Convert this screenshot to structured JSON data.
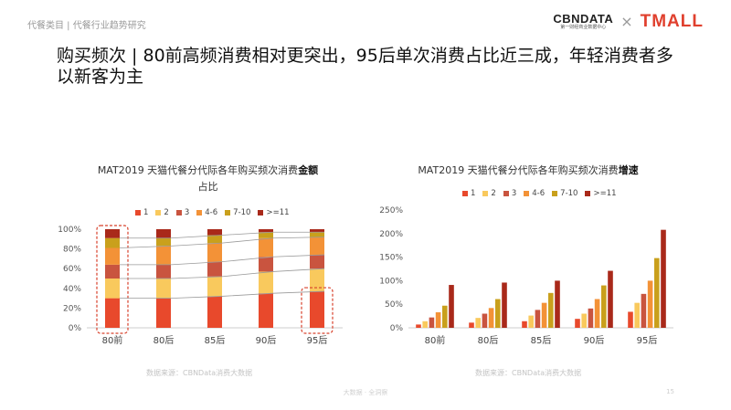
{
  "header": {
    "breadcrumb": "代餐类目 | 代餐行业趋势研究",
    "logo_cbndata": "CBNDATA",
    "logo_cbndata_sub": "第一财经商业数据中心",
    "logo_separator": "×",
    "logo_tmall": "TMALL"
  },
  "page_title": "购买频次 | 80前高频消费相对更突出，95后单次消费占比近三成，年轻消费者多以新客为主",
  "colors": [
    "#e8492c",
    "#f9c95d",
    "#c9543f",
    "#f39237",
    "#c9a01c",
    "#a9291a"
  ],
  "chart_data": [
    {
      "type": "bar",
      "stacked": true,
      "title_prefix": "MAT2019 天猫代餐分代际各年购买频次消费",
      "title_bold": "金额",
      "title_suffix": "占比",
      "categories": [
        "80前",
        "80后",
        "85后",
        "90后",
        "95后"
      ],
      "legend": [
        "1",
        "2",
        "3",
        "4-6",
        "7-10",
        ">=11"
      ],
      "legend_position": "top",
      "ylim": [
        0,
        1
      ],
      "yticks": [
        "0%",
        "20%",
        "40%",
        "60%",
        "80%",
        "100%"
      ],
      "series": [
        {
          "name": "1",
          "values": [
            0.3,
            0.3,
            0.32,
            0.35,
            0.37
          ]
        },
        {
          "name": "2",
          "values": [
            0.2,
            0.2,
            0.2,
            0.22,
            0.23
          ]
        },
        {
          "name": "3",
          "values": [
            0.14,
            0.14,
            0.15,
            0.15,
            0.14
          ]
        },
        {
          "name": "4-6",
          "values": [
            0.17,
            0.19,
            0.19,
            0.19,
            0.18
          ]
        },
        {
          "name": "7-10",
          "values": [
            0.1,
            0.08,
            0.08,
            0.06,
            0.05
          ]
        },
        {
          "name": ">=11",
          "values": [
            0.09,
            0.09,
            0.06,
            0.03,
            0.03
          ]
        }
      ],
      "highlighted_categories": [
        "80前",
        "95后"
      ],
      "source": "数据来源：CBNData消费大数据"
    },
    {
      "type": "bar",
      "title_prefix": "MAT2019 天猫代餐分代际各年购买频次消费",
      "title_bold": "增速",
      "categories": [
        "80前",
        "80后",
        "85后",
        "90后",
        "95后"
      ],
      "legend": [
        "1",
        "2",
        "3",
        "4-6",
        "7-10",
        ">=11"
      ],
      "legend_position": "top",
      "ylim": [
        0,
        2.5
      ],
      "yticks": [
        "0%",
        "50%",
        "100%",
        "150%",
        "200%",
        "250%"
      ],
      "series": [
        {
          "name": "1",
          "values": [
            0.07,
            0.11,
            0.14,
            0.19,
            0.34
          ]
        },
        {
          "name": "2",
          "values": [
            0.14,
            0.21,
            0.26,
            0.3,
            0.53
          ]
        },
        {
          "name": "3",
          "values": [
            0.22,
            0.3,
            0.38,
            0.41,
            0.72
          ]
        },
        {
          "name": "4-6",
          "values": [
            0.33,
            0.42,
            0.53,
            0.61,
            1.0
          ]
        },
        {
          "name": "7-10",
          "values": [
            0.47,
            0.61,
            0.74,
            0.9,
            1.48
          ]
        },
        {
          "name": ">=11",
          "values": [
            0.91,
            0.96,
            1.0,
            1.21,
            2.08
          ]
        }
      ],
      "source": "数据来源：CBNData消费大数据"
    }
  ],
  "footer": {
    "watermark": "大数据 · 全洞察",
    "page_number": "15"
  }
}
